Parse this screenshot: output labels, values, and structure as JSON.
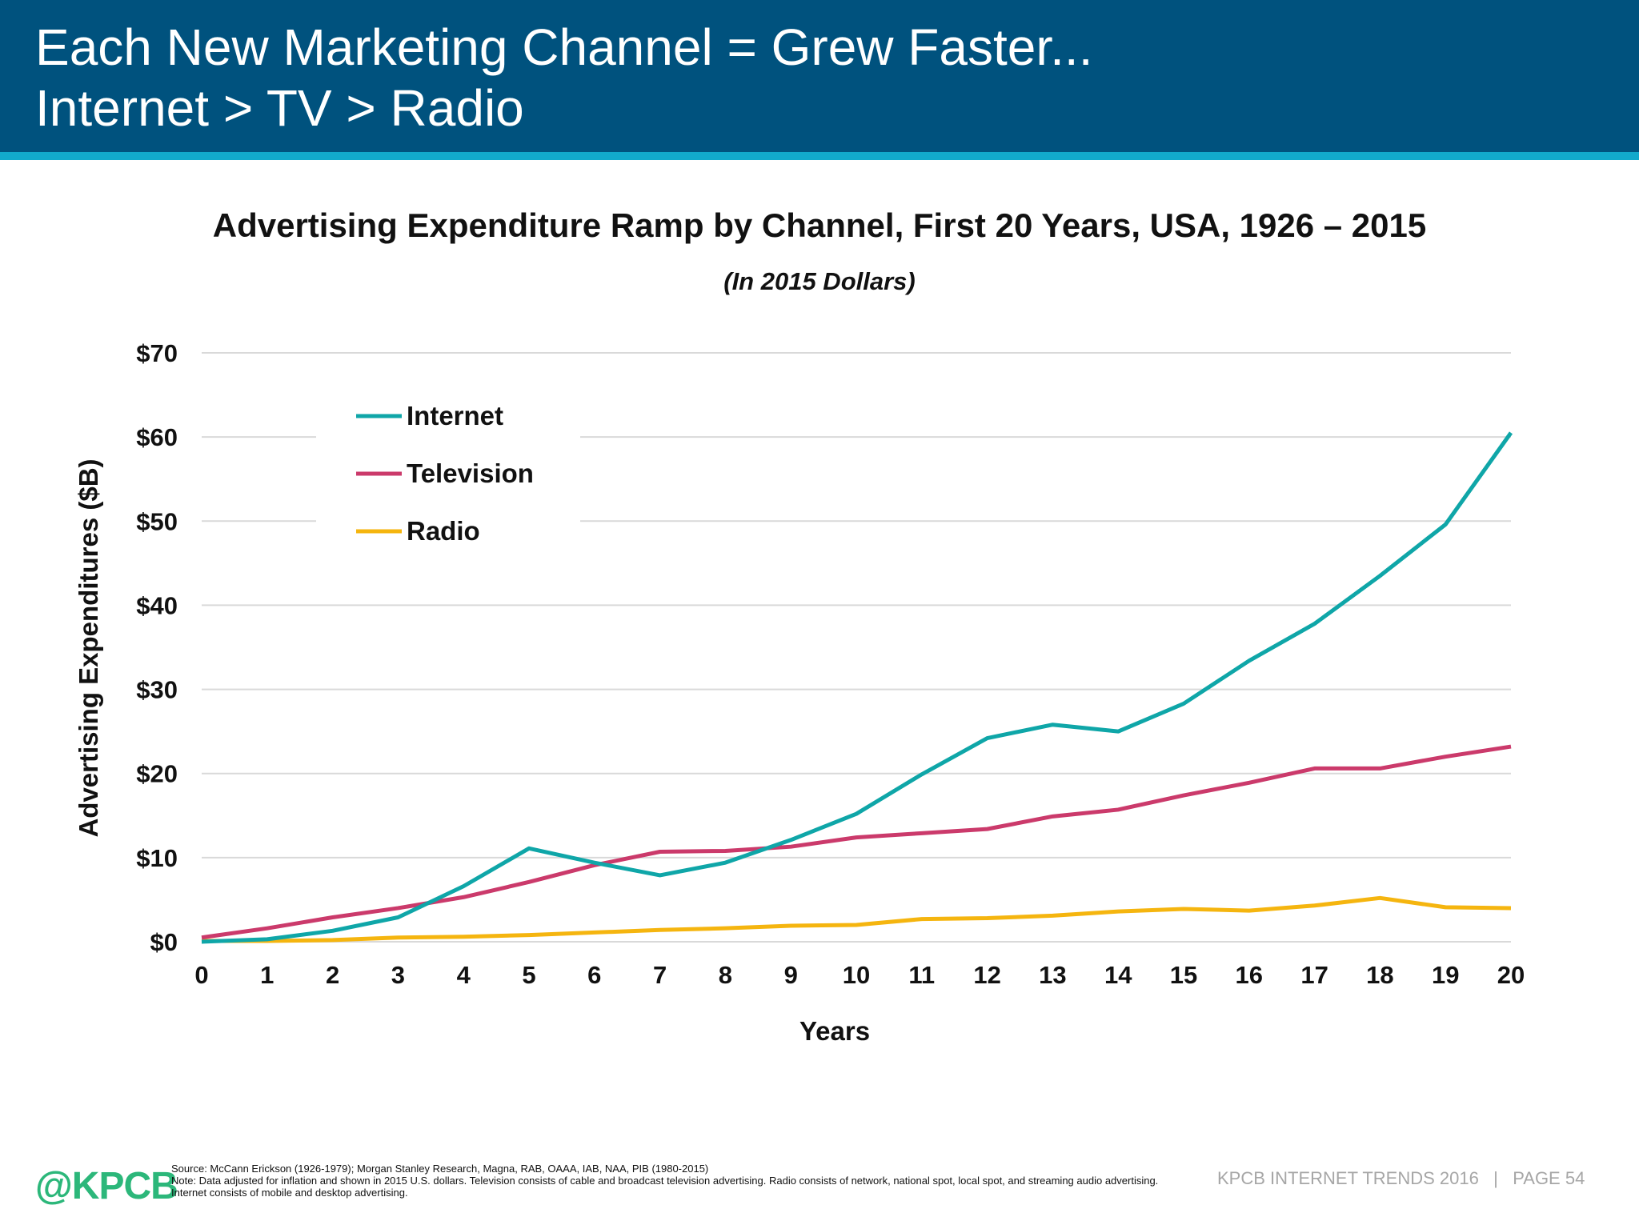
{
  "header": {
    "title_line1": "Each New Marketing Channel = Grew Faster...",
    "title_line2": "Internet > TV > Radio",
    "bg_color": "#00527e",
    "strip_color": "#12a9cc"
  },
  "chart_data": {
    "type": "line",
    "title": "Advertising Expenditure Ramp by Channel, First 20 Years, USA, 1926 – 2015",
    "subtitle": "(In 2015 Dollars)",
    "xlabel": "Years",
    "ylabel": "Advertising Expenditures ($B)",
    "x": [
      0,
      1,
      2,
      3,
      4,
      5,
      6,
      7,
      8,
      9,
      10,
      11,
      12,
      13,
      14,
      15,
      16,
      17,
      18,
      19,
      20
    ],
    "x_tick_labels": [
      "0",
      "1",
      "2",
      "3",
      "4",
      "5",
      "6",
      "7",
      "8",
      "9",
      "10",
      "11",
      "12",
      "13",
      "14",
      "15",
      "16",
      "17",
      "18",
      "19",
      "20"
    ],
    "y_tick_values": [
      0,
      10,
      20,
      30,
      40,
      50,
      60,
      70
    ],
    "y_tick_labels": [
      "$0",
      "$10",
      "$20",
      "$30",
      "$40",
      "$50",
      "$60",
      "$70"
    ],
    "xlim": [
      0,
      20
    ],
    "ylim": [
      0,
      70
    ],
    "grid": "horizontal",
    "legend_position": "top-left",
    "series": [
      {
        "name": "Internet",
        "color": "#0fa6a8",
        "values": [
          0,
          0.3,
          1.3,
          2.9,
          6.6,
          11.1,
          9.4,
          7.9,
          9.4,
          12.1,
          15.2,
          19.9,
          24.2,
          25.8,
          25.0,
          28.3,
          33.4,
          37.8,
          43.5,
          49.6,
          60.5
        ]
      },
      {
        "name": "Television",
        "color": "#cb3a6b",
        "values": [
          0.5,
          1.6,
          2.9,
          4.0,
          5.3,
          7.1,
          9.1,
          10.7,
          10.8,
          11.3,
          12.4,
          12.9,
          13.4,
          14.9,
          15.7,
          17.4,
          18.9,
          20.6,
          20.6,
          22.0,
          23.2
        ]
      },
      {
        "name": "Radio",
        "color": "#f5b50f",
        "values": [
          0.1,
          0.1,
          0.2,
          0.5,
          0.6,
          0.8,
          1.1,
          1.4,
          1.6,
          1.9,
          2.0,
          2.7,
          2.8,
          3.1,
          3.6,
          3.9,
          3.7,
          4.3,
          5.2,
          4.1,
          4.0
        ]
      }
    ]
  },
  "footer": {
    "logo_text": "@KPCB",
    "logo_color": "#2cb77a",
    "source": "Source: McCann Erickson (1926-1979); Morgan Stanley Research, Magna, RAB, OAAA, IAB, NAA, PIB (1980-2015)",
    "note": "Note: Data adjusted for inflation and shown in 2015 U.S. dollars. Television consists of cable and broadcast television advertising. Radio consists of network, national spot, local spot, and streaming audio advertising. Internet consists of mobile and desktop advertising.",
    "page_info": "KPCB INTERNET TRENDS 2016   |   PAGE 54"
  }
}
